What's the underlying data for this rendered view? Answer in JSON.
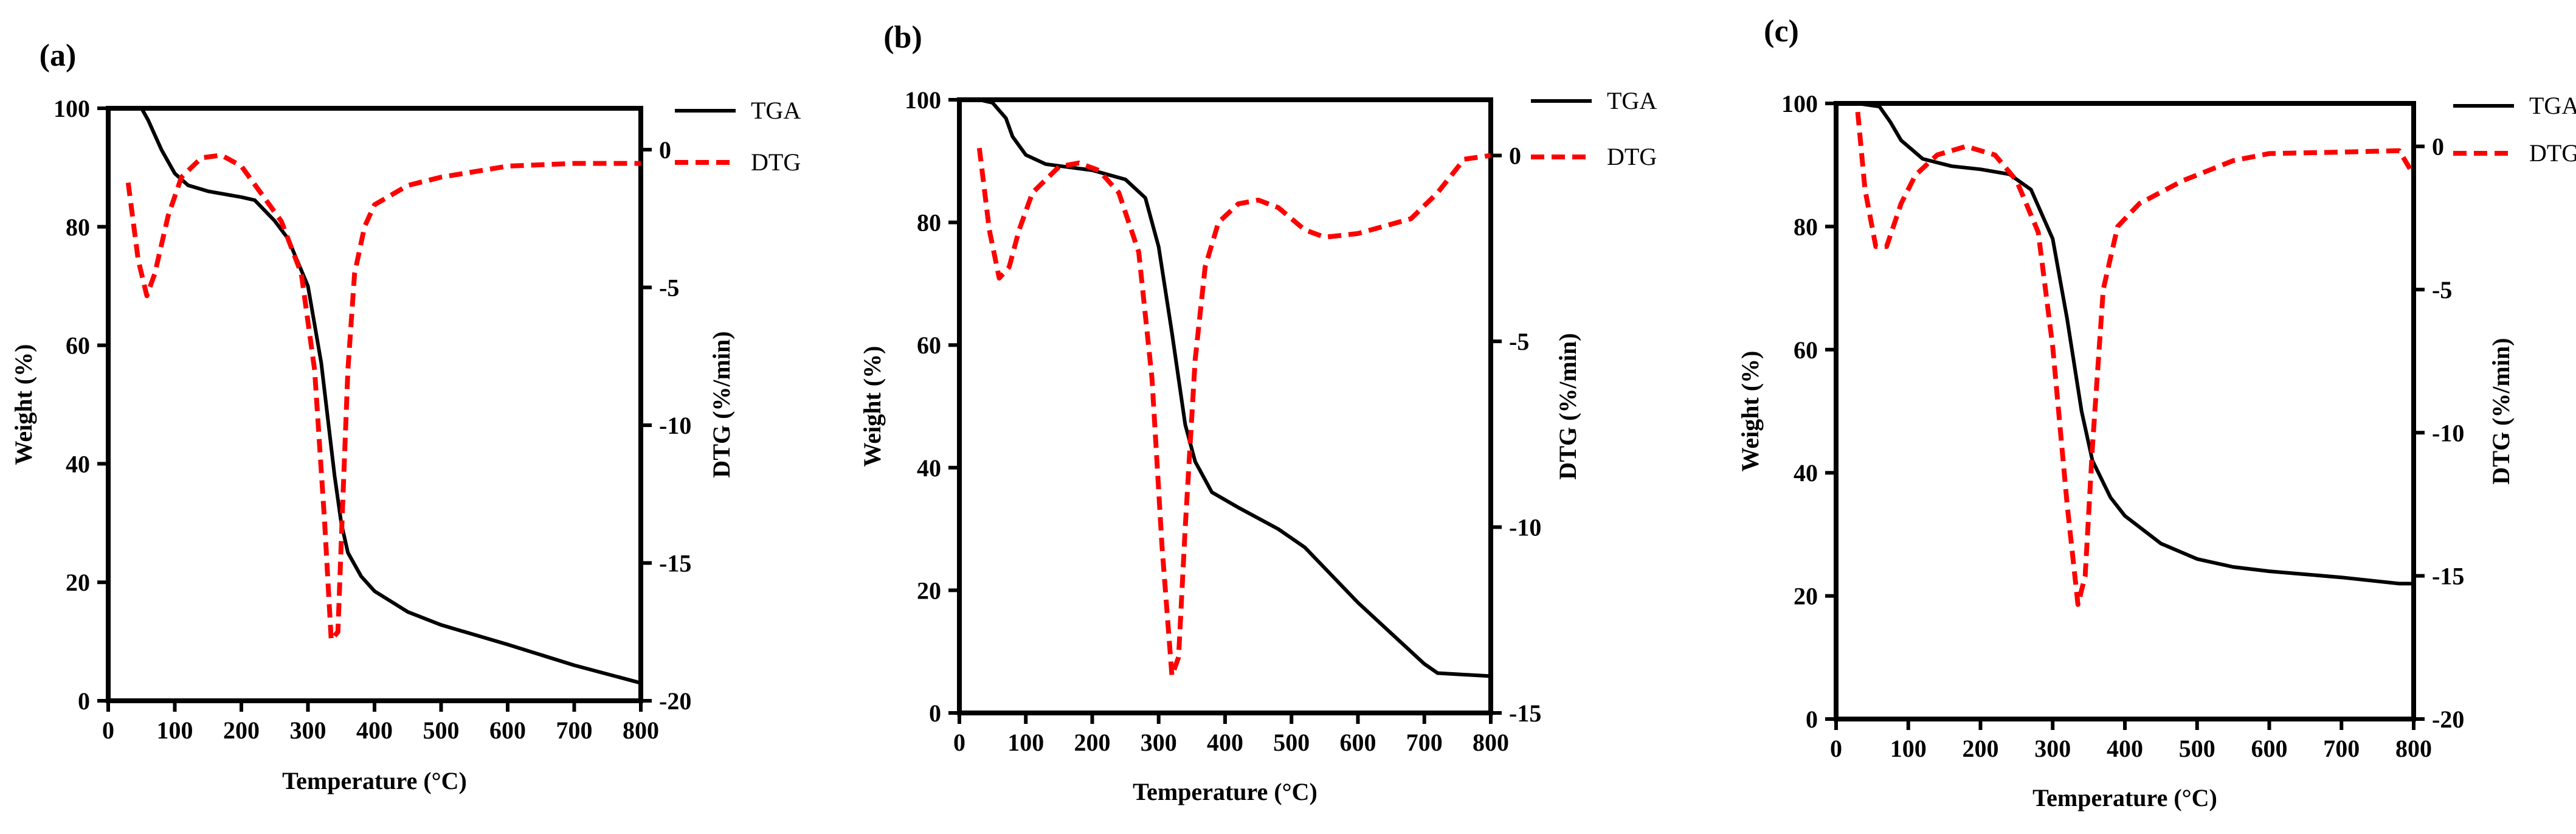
{
  "colors": {
    "tga": "#000000",
    "dtg": "#ff0000"
  },
  "chart_data": [
    {
      "panel": "(a)",
      "type": "line",
      "xlabel": "Temperature (°C)",
      "ylabel": "Weight (%)",
      "y2label": "DTG (%/min)",
      "xlim": [
        0,
        800
      ],
      "ylim": [
        0,
        100
      ],
      "y2lim": [
        -20,
        1.5
      ],
      "x_ticks": [
        0,
        100,
        200,
        300,
        400,
        500,
        600,
        700,
        800
      ],
      "y_ticks": [
        0,
        20,
        40,
        60,
        80,
        100
      ],
      "y2_ticks": [
        -20,
        -15,
        -10,
        -5,
        0
      ],
      "legend_position": "top-right",
      "series": [
        {
          "name": "TGA",
          "axis": "left",
          "style": "solid",
          "points": [
            [
              30,
              100
            ],
            [
              50,
              100
            ],
            [
              60,
              98
            ],
            [
              80,
              93
            ],
            [
              100,
              89
            ],
            [
              120,
              87
            ],
            [
              150,
              86
            ],
            [
              200,
              85
            ],
            [
              220,
              84.5
            ],
            [
              250,
              81
            ],
            [
              270,
              78
            ],
            [
              300,
              70
            ],
            [
              320,
              57
            ],
            [
              340,
              38
            ],
            [
              350,
              30
            ],
            [
              360,
              25
            ],
            [
              380,
              21
            ],
            [
              400,
              18.5
            ],
            [
              450,
              15
            ],
            [
              500,
              12.8
            ],
            [
              600,
              9.5
            ],
            [
              700,
              6
            ],
            [
              800,
              3
            ]
          ]
        },
        {
          "name": "DTG",
          "axis": "right",
          "style": "dashed",
          "points": [
            [
              30,
              -1.2
            ],
            [
              45,
              -4
            ],
            [
              58,
              -5.3
            ],
            [
              70,
              -4.5
            ],
            [
              90,
              -2.4
            ],
            [
              110,
              -1
            ],
            [
              140,
              -0.3
            ],
            [
              170,
              -0.2
            ],
            [
              200,
              -0.6
            ],
            [
              230,
              -1.6
            ],
            [
              260,
              -2.6
            ],
            [
              290,
              -4.5
            ],
            [
              310,
              -8
            ],
            [
              325,
              -13.5
            ],
            [
              335,
              -17.8
            ],
            [
              345,
              -17.5
            ],
            [
              352,
              -13
            ],
            [
              360,
              -8
            ],
            [
              370,
              -4.5
            ],
            [
              385,
              -2.8
            ],
            [
              400,
              -2
            ],
            [
              450,
              -1.3
            ],
            [
              500,
              -1
            ],
            [
              600,
              -0.6
            ],
            [
              700,
              -0.5
            ],
            [
              800,
              -0.5
            ]
          ]
        }
      ]
    },
    {
      "panel": "(b)",
      "type": "line",
      "xlabel": "Temperature (°C)",
      "ylabel": "Weight (%)",
      "y2label": "DTG (%/min)",
      "xlim": [
        0,
        800
      ],
      "ylim": [
        0,
        100
      ],
      "y2lim": [
        -15,
        1.5
      ],
      "x_ticks": [
        0,
        100,
        200,
        300,
        400,
        500,
        600,
        700,
        800
      ],
      "y_ticks": [
        0,
        20,
        40,
        60,
        80,
        100
      ],
      "y2_ticks": [
        -15,
        -10,
        -5,
        0
      ],
      "legend_position": "top-right",
      "series": [
        {
          "name": "TGA",
          "axis": "left",
          "style": "solid",
          "points": [
            [
              30,
              100
            ],
            [
              50,
              99.5
            ],
            [
              70,
              97
            ],
            [
              80,
              94
            ],
            [
              100,
              91
            ],
            [
              130,
              89.5
            ],
            [
              200,
              88.5
            ],
            [
              250,
              87
            ],
            [
              280,
              84
            ],
            [
              300,
              76
            ],
            [
              320,
              62
            ],
            [
              340,
              47
            ],
            [
              355,
              41
            ],
            [
              380,
              36
            ],
            [
              420,
              33.5
            ],
            [
              480,
              30
            ],
            [
              520,
              27
            ],
            [
              600,
              18
            ],
            [
              650,
              13
            ],
            [
              700,
              8
            ],
            [
              720,
              6.5
            ],
            [
              800,
              6
            ]
          ]
        },
        {
          "name": "DTG",
          "axis": "right",
          "style": "dashed",
          "points": [
            [
              30,
              0.2
            ],
            [
              45,
              -2
            ],
            [
              60,
              -3.3
            ],
            [
              75,
              -3
            ],
            [
              90,
              -2
            ],
            [
              110,
              -1
            ],
            [
              150,
              -0.3
            ],
            [
              180,
              -0.2
            ],
            [
              210,
              -0.4
            ],
            [
              240,
              -1
            ],
            [
              270,
              -2.6
            ],
            [
              290,
              -6
            ],
            [
              305,
              -10.5
            ],
            [
              320,
              -14
            ],
            [
              330,
              -13.5
            ],
            [
              340,
              -10
            ],
            [
              355,
              -5.5
            ],
            [
              370,
              -3
            ],
            [
              390,
              -1.8
            ],
            [
              420,
              -1.3
            ],
            [
              450,
              -1.2
            ],
            [
              480,
              -1.4
            ],
            [
              520,
              -2
            ],
            [
              550,
              -2.2
            ],
            [
              600,
              -2.1
            ],
            [
              680,
              -1.7
            ],
            [
              720,
              -1
            ],
            [
              760,
              -0.1
            ],
            [
              800,
              0
            ]
          ]
        }
      ]
    },
    {
      "panel": "(c)",
      "type": "line",
      "xlabel": "Temperature (°C)",
      "ylabel": "Weight (%)",
      "y2label": "DTG (%/min)",
      "xlim": [
        0,
        800
      ],
      "ylim": [
        0,
        100
      ],
      "y2lim": [
        -20,
        1.5
      ],
      "x_ticks": [
        0,
        100,
        200,
        300,
        400,
        500,
        600,
        700,
        800
      ],
      "y_ticks": [
        0,
        20,
        40,
        60,
        80,
        100
      ],
      "y2_ticks": [
        -20,
        -15,
        -10,
        -5,
        0
      ],
      "legend_position": "top-right",
      "series": [
        {
          "name": "TGA",
          "axis": "left",
          "style": "solid",
          "points": [
            [
              30,
              100
            ],
            [
              60,
              99.5
            ],
            [
              75,
              97
            ],
            [
              90,
              94
            ],
            [
              120,
              91
            ],
            [
              160,
              89.8
            ],
            [
              200,
              89.3
            ],
            [
              240,
              88.5
            ],
            [
              270,
              86
            ],
            [
              300,
              78
            ],
            [
              320,
              65
            ],
            [
              340,
              50
            ],
            [
              355,
              42
            ],
            [
              380,
              36
            ],
            [
              400,
              33
            ],
            [
              450,
              28.5
            ],
            [
              500,
              26
            ],
            [
              550,
              24.7
            ],
            [
              600,
              24
            ],
            [
              700,
              23
            ],
            [
              780,
              22
            ],
            [
              800,
              22
            ]
          ]
        },
        {
          "name": "DTG",
          "axis": "right",
          "style": "dashed",
          "points": [
            [
              30,
              1.2
            ],
            [
              40,
              -1.5
            ],
            [
              55,
              -3.5
            ],
            [
              70,
              -3.5
            ],
            [
              90,
              -2
            ],
            [
              110,
              -1
            ],
            [
              140,
              -0.3
            ],
            [
              180,
              0
            ],
            [
              220,
              -0.3
            ],
            [
              250,
              -1.2
            ],
            [
              280,
              -3
            ],
            [
              300,
              -7
            ],
            [
              320,
              -12.5
            ],
            [
              335,
              -16
            ],
            [
              345,
              -15
            ],
            [
              355,
              -10.5
            ],
            [
              370,
              -5
            ],
            [
              390,
              -2.8
            ],
            [
              420,
              -2
            ],
            [
              480,
              -1.2
            ],
            [
              550,
              -0.5
            ],
            [
              600,
              -0.25
            ],
            [
              700,
              -0.2
            ],
            [
              780,
              -0.15
            ],
            [
              800,
              -1
            ]
          ]
        }
      ]
    }
  ]
}
